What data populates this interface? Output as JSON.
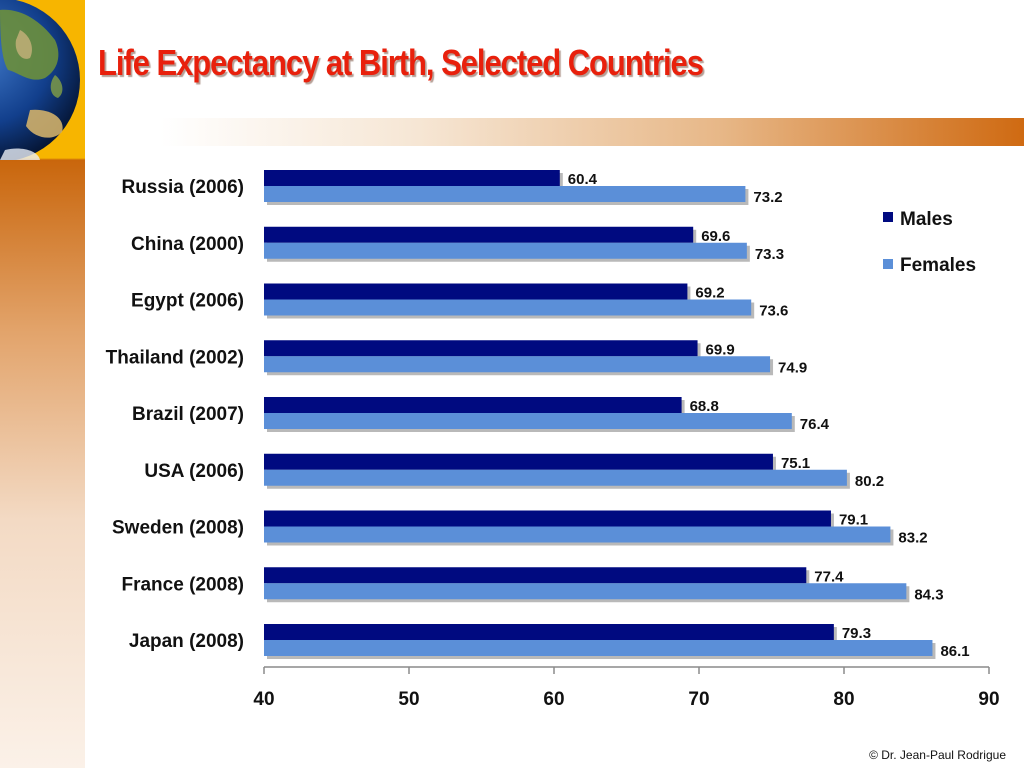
{
  "slide": {
    "title": "Life Expectancy at Birth, Selected Countries",
    "copyright": "© Dr. Jean-Paul Rodrigue"
  },
  "colors": {
    "males": "#000a80",
    "females": "#5b8fd8",
    "title": "#e8200c"
  },
  "icons": {
    "globe": "globe-icon"
  },
  "chart_data": {
    "type": "bar",
    "orientation": "horizontal",
    "categories": [
      "Russia (2006)",
      "China (2000)",
      "Egypt (2006)",
      "Thailand (2002)",
      "Brazil (2007)",
      "USA (2006)",
      "Sweden (2008)",
      "France (2008)",
      "Japan (2008)"
    ],
    "series": [
      {
        "name": "Males",
        "values": [
          60.4,
          69.6,
          69.2,
          69.9,
          68.8,
          75.1,
          79.1,
          77.4,
          79.3
        ]
      },
      {
        "name": "Females",
        "values": [
          73.2,
          73.3,
          73.6,
          74.9,
          76.4,
          80.2,
          83.2,
          84.3,
          86.1
        ]
      }
    ],
    "xlim": [
      40,
      90
    ],
    "xticks": [
      40,
      50,
      60,
      70,
      80,
      90
    ],
    "title": "",
    "xlabel": "",
    "ylabel": "",
    "grid": false,
    "legend": "right"
  }
}
